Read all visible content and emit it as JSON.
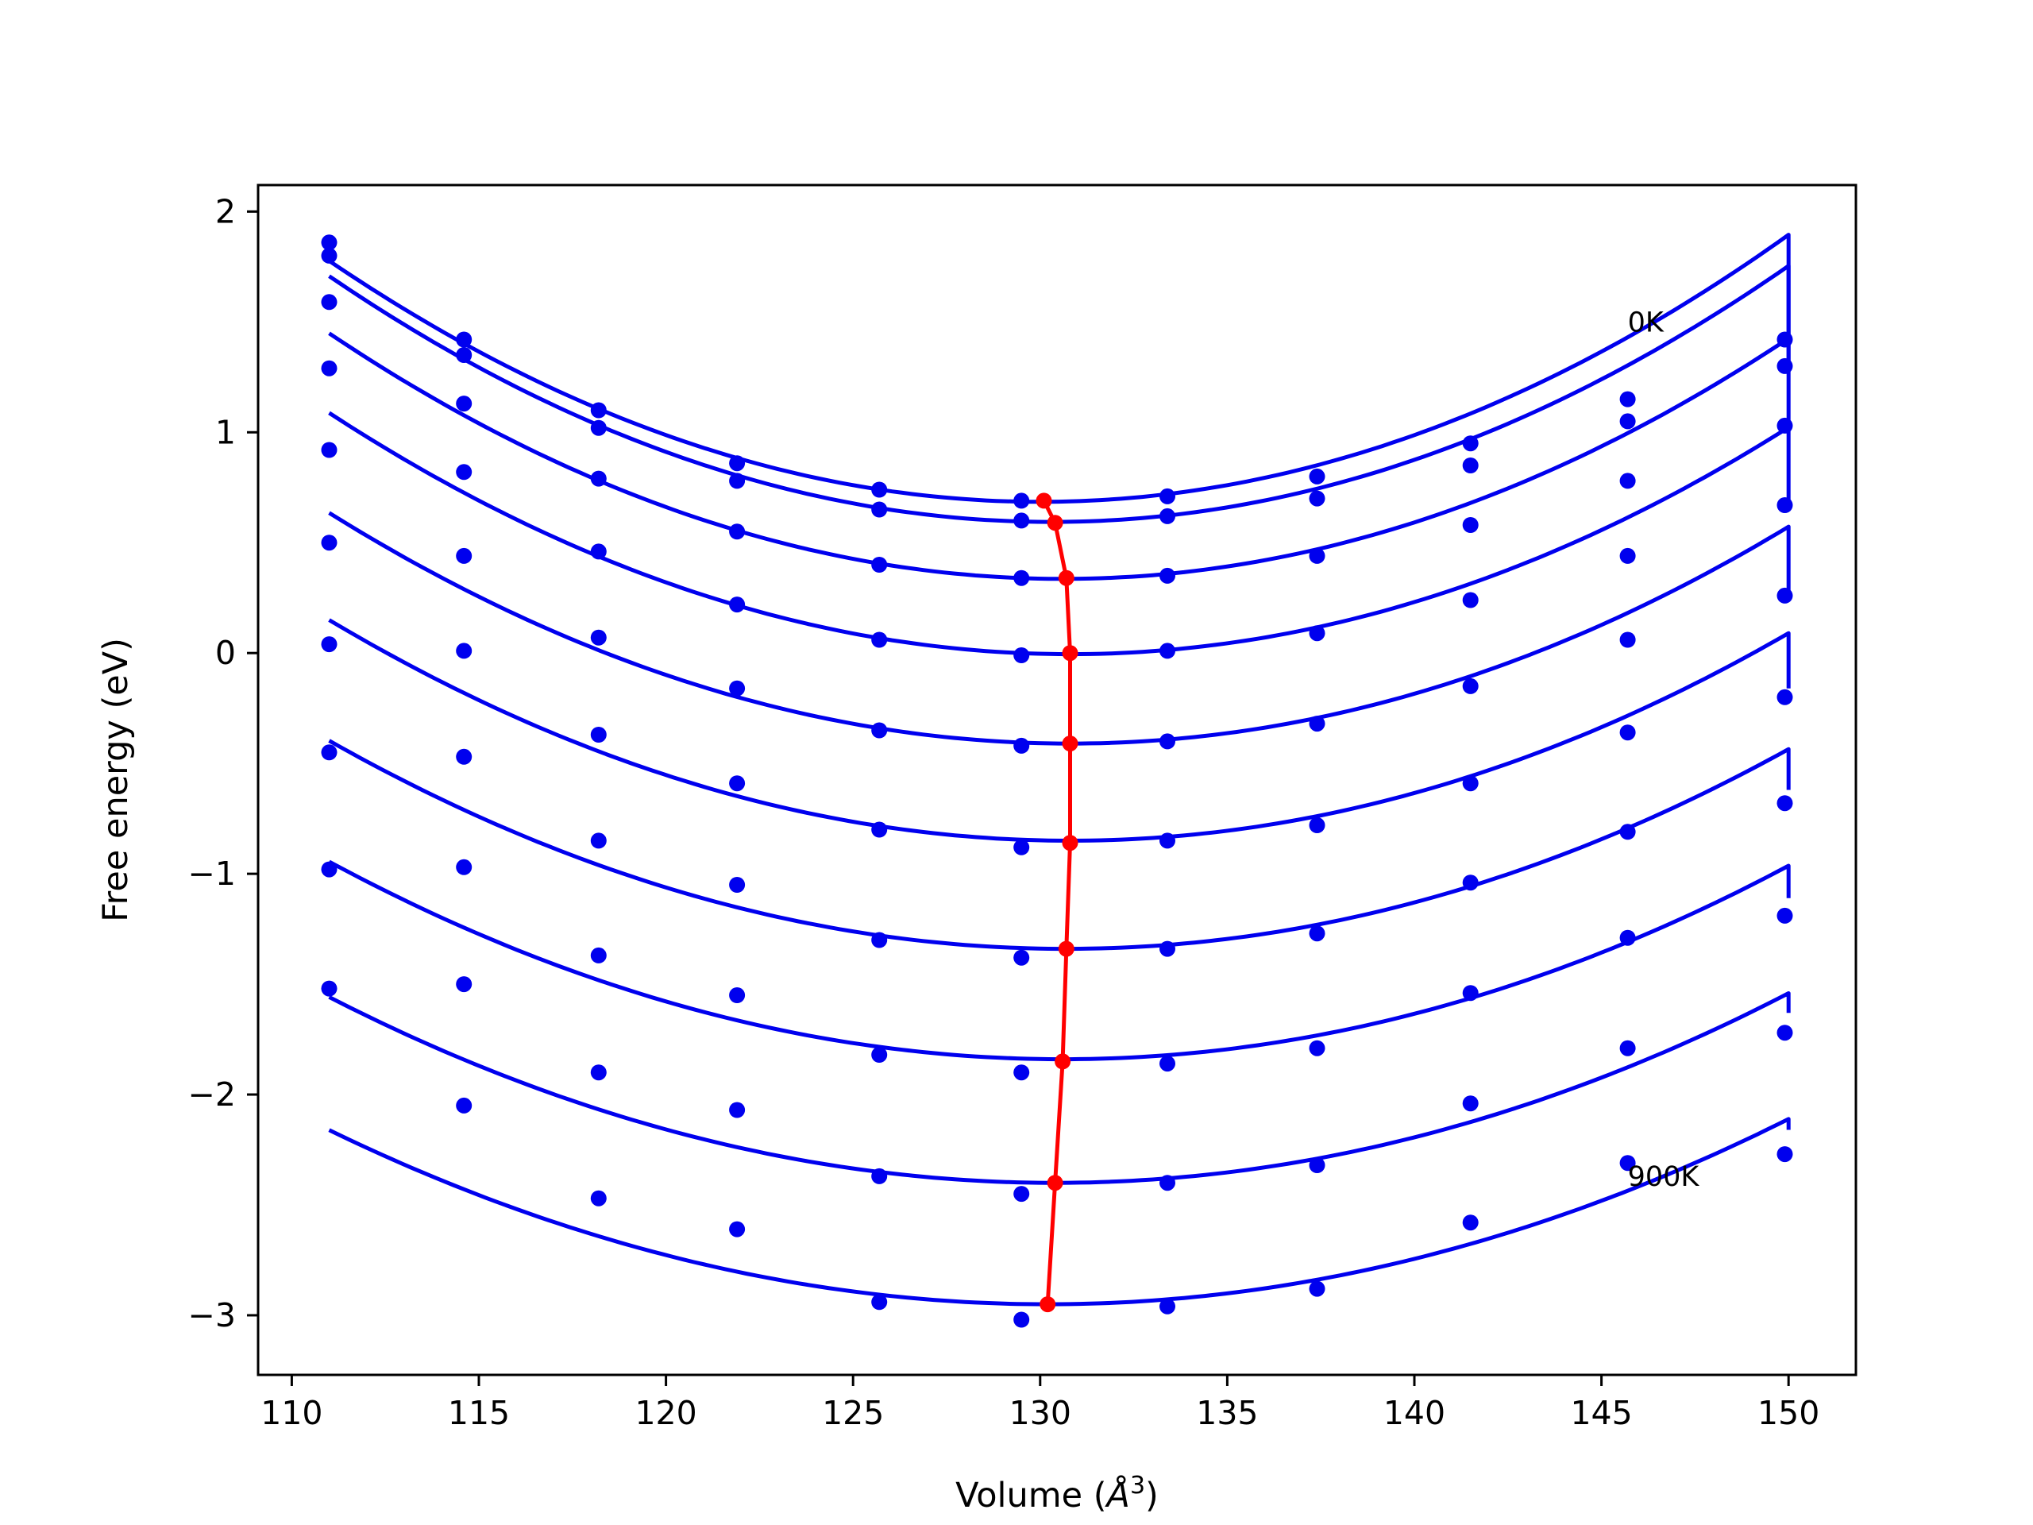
{
  "chart_data": {
    "type": "line",
    "xlabel": "Volume (Å³)",
    "xlabel_main": "Volume (",
    "xlabel_unit": "Å",
    "xlabel_exp": "3",
    "xlabel_close": ")",
    "ylabel": "Free energy (eV)",
    "xlim": [
      109.1,
      151.8
    ],
    "ylim": [
      -3.27,
      2.12
    ],
    "xticks": [
      110,
      115,
      120,
      125,
      130,
      135,
      140,
      145,
      150
    ],
    "xtick_labels": [
      "110",
      "115",
      "120",
      "125",
      "130",
      "135",
      "140",
      "145",
      "150"
    ],
    "yticks": [
      2,
      1,
      0,
      -1,
      -2,
      -3
    ],
    "ytick_labels": [
      "2",
      "1",
      "0",
      "−1",
      "−2",
      "−3"
    ],
    "grid": false,
    "legend": null,
    "annotations": [
      {
        "text": "0K",
        "x": 145.7,
        "y": 1.5
      },
      {
        "text": "900K",
        "x": 145.7,
        "y": -2.37
      }
    ],
    "x": [
      111.0,
      114.6,
      118.2,
      121.9,
      125.7,
      129.5,
      133.4,
      137.4,
      141.5,
      145.7,
      149.9
    ],
    "series": [
      {
        "y": [
          1.86,
          1.42,
          1.1,
          0.86,
          0.74,
          0.69,
          0.71,
          0.8,
          0.95,
          1.15,
          1.42
        ]
      },
      {
        "y": [
          1.8,
          1.35,
          1.02,
          0.78,
          0.65,
          0.6,
          0.62,
          0.7,
          0.85,
          1.05,
          1.3
        ]
      },
      {
        "y": [
          1.59,
          1.13,
          0.79,
          0.55,
          0.4,
          0.34,
          0.35,
          0.44,
          0.58,
          0.78,
          1.03
        ]
      },
      {
        "y": [
          1.29,
          0.82,
          0.46,
          0.22,
          0.06,
          -0.01,
          0.01,
          0.09,
          0.24,
          0.44,
          0.67
        ]
      },
      {
        "y": [
          0.92,
          0.44,
          0.07,
          -0.16,
          -0.35,
          -0.42,
          -0.4,
          -0.32,
          -0.15,
          0.06,
          0.26
        ]
      },
      {
        "y": [
          0.5,
          0.01,
          -0.37,
          -0.59,
          -0.8,
          -0.88,
          -0.85,
          -0.78,
          -0.59,
          -0.36,
          -0.2
        ]
      },
      {
        "y": [
          0.04,
          -0.47,
          -0.85,
          -1.05,
          -1.3,
          -1.38,
          -1.34,
          -1.27,
          -1.04,
          -0.81,
          -0.68
        ]
      },
      {
        "y": [
          -0.45,
          -0.97,
          -1.37,
          -1.55,
          -1.82,
          -1.9,
          -1.86,
          -1.79,
          -1.54,
          -1.29,
          -1.19
        ]
      },
      {
        "y": [
          -0.98,
          -1.5,
          -1.9,
          -2.07,
          -2.37,
          -2.45,
          -2.4,
          -2.32,
          -2.04,
          -1.79,
          -1.72
        ]
      },
      {
        "y": [
          -1.52,
          -2.05,
          -2.47,
          -2.61,
          -2.94,
          -3.02,
          -2.96,
          -2.88,
          -2.58,
          -2.31,
          -2.27
        ]
      }
    ],
    "fits": [
      {
        "a": 0.003024,
        "v0": 130.0,
        "e0": 0.685,
        "x_end": 150.0,
        "y_end": 1.41
      },
      {
        "a": 0.002989,
        "v0": 130.3,
        "e0": 0.594,
        "x_end": 150.0,
        "y_end": 1.3
      },
      {
        "a": 0.002895,
        "v0": 130.6,
        "e0": 0.336,
        "x_end": 150.0,
        "y_end": 1.02
      },
      {
        "a": 0.002787,
        "v0": 130.8,
        "e0": -0.005,
        "x_end": 150.0,
        "y_end": 0.67
      },
      {
        "a": 0.002665,
        "v0": 130.8,
        "e0": -0.41,
        "x_end": 150.0,
        "y_end": 0.28
      },
      {
        "a": 0.00255,
        "v0": 130.8,
        "e0": -0.85,
        "x_end": 150.0,
        "y_end": -0.16
      },
      {
        "a": 0.002429,
        "v0": 130.7,
        "e0": -1.34,
        "x_end": 150.0,
        "y_end": -0.62
      },
      {
        "a": 0.002329,
        "v0": 130.6,
        "e0": -1.84,
        "x_end": 150.0,
        "y_end": -1.11
      },
      {
        "a": 0.002236,
        "v0": 130.4,
        "e0": -2.4,
        "x_end": 150.0,
        "y_end": -1.63
      },
      {
        "a": 0.00214,
        "v0": 130.2,
        "e0": -2.95,
        "x_end": 150.0,
        "y_end": -2.16
      }
    ],
    "minima": {
      "x": [
        130.1,
        130.4,
        130.7,
        130.8,
        130.8,
        130.8,
        130.7,
        130.6,
        130.4,
        130.2
      ],
      "y": [
        0.69,
        0.59,
        0.34,
        0.0,
        -0.41,
        -0.86,
        -1.34,
        -1.85,
        -2.4,
        -2.95
      ]
    },
    "colors": {
      "series": "#0000ee",
      "minima": "#ff0000"
    }
  }
}
